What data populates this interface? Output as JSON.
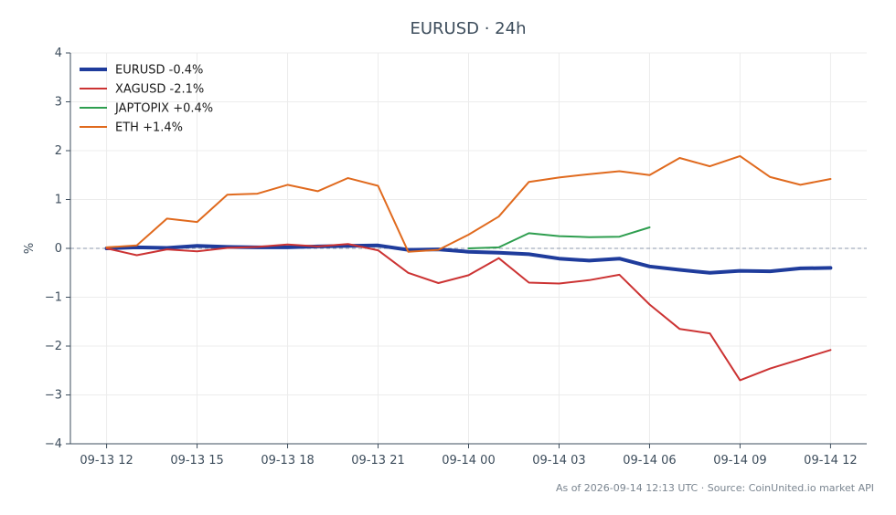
{
  "chart_data": {
    "type": "line",
    "title": "EURUSD · 24h",
    "ylabel": "%",
    "xlabel": "",
    "ylim": [
      -4,
      4
    ],
    "yticks": [
      4,
      3,
      2,
      1,
      0,
      -1,
      -2,
      -3,
      -4
    ],
    "ytick_labels": [
      "4",
      "3",
      "2",
      "1",
      "0",
      "−1",
      "−2",
      "−3",
      "−4"
    ],
    "xticks": [
      0,
      3,
      6,
      9,
      12,
      15,
      18,
      21,
      24
    ],
    "xtick_labels": [
      "09-13 12",
      "09-13 15",
      "09-13 18",
      "09-13 21",
      "09-14 00",
      "09-14 03",
      "09-14 06",
      "09-14 09",
      "09-14 12"
    ],
    "xlim": [
      -1.2,
      25.2
    ],
    "grid": true,
    "zero_line": true,
    "legend_position": "top-left",
    "series": [
      {
        "name": "EURUSD -0.4%",
        "color": "#1f3c9c",
        "width": 4,
        "x": [
          0,
          1,
          2,
          3,
          4,
          5,
          6,
          7,
          8,
          9,
          10,
          11,
          12,
          13,
          14,
          15,
          16,
          17,
          18,
          19,
          20,
          21,
          22,
          23,
          24
        ],
        "values": [
          0.0,
          0.02,
          0.01,
          0.05,
          0.03,
          0.02,
          0.02,
          0.04,
          0.05,
          0.06,
          -0.03,
          -0.02,
          -0.07,
          -0.09,
          -0.12,
          -0.21,
          -0.25,
          -0.21,
          -0.37,
          -0.44,
          -0.5,
          -0.46,
          -0.47,
          -0.41,
          -0.4
        ]
      },
      {
        "name": "XAGUSD -2.1%",
        "color": "#cc3333",
        "width": 2,
        "x": [
          0,
          1,
          2,
          3,
          4,
          5,
          6,
          7,
          8,
          9,
          10,
          11,
          12,
          13,
          14,
          15,
          16,
          17,
          18,
          19,
          20,
          21,
          22,
          23,
          24
        ],
        "values": [
          0.0,
          -0.14,
          -0.02,
          -0.06,
          0.01,
          0.03,
          0.08,
          0.04,
          0.09,
          -0.04,
          -0.5,
          -0.71,
          -0.55,
          -0.2,
          -0.7,
          -0.72,
          -0.65,
          -0.54,
          -1.15,
          -1.65,
          -1.74,
          -2.7,
          -2.46,
          -2.27,
          -2.08
        ]
      },
      {
        "name": "JAPTOPIX +0.4%",
        "color": "#2e9e4f",
        "width": 2,
        "x": [
          12,
          13,
          14,
          15,
          16,
          17,
          18
        ],
        "values": [
          0.0,
          0.02,
          0.31,
          0.25,
          0.23,
          0.24,
          0.43
        ]
      },
      {
        "name": "ETH +1.4%",
        "color": "#e06a1e",
        "width": 2,
        "x": [
          0,
          1,
          2,
          3,
          4,
          5,
          6,
          7,
          8,
          9,
          10,
          11,
          12,
          13,
          14,
          15,
          16,
          17,
          18,
          19,
          20,
          21,
          22,
          23,
          24
        ],
        "values": [
          0.02,
          0.06,
          0.61,
          0.54,
          1.1,
          1.12,
          1.3,
          1.17,
          1.44,
          1.28,
          -0.07,
          -0.03,
          0.28,
          0.65,
          1.36,
          1.45,
          1.52,
          1.58,
          1.5,
          1.85,
          1.68,
          1.89,
          1.46,
          1.3,
          1.42
        ]
      }
    ]
  },
  "footer": {
    "note": "As of 2026-09-14 12:13 UTC · Source: CoinUnited.io market API"
  }
}
